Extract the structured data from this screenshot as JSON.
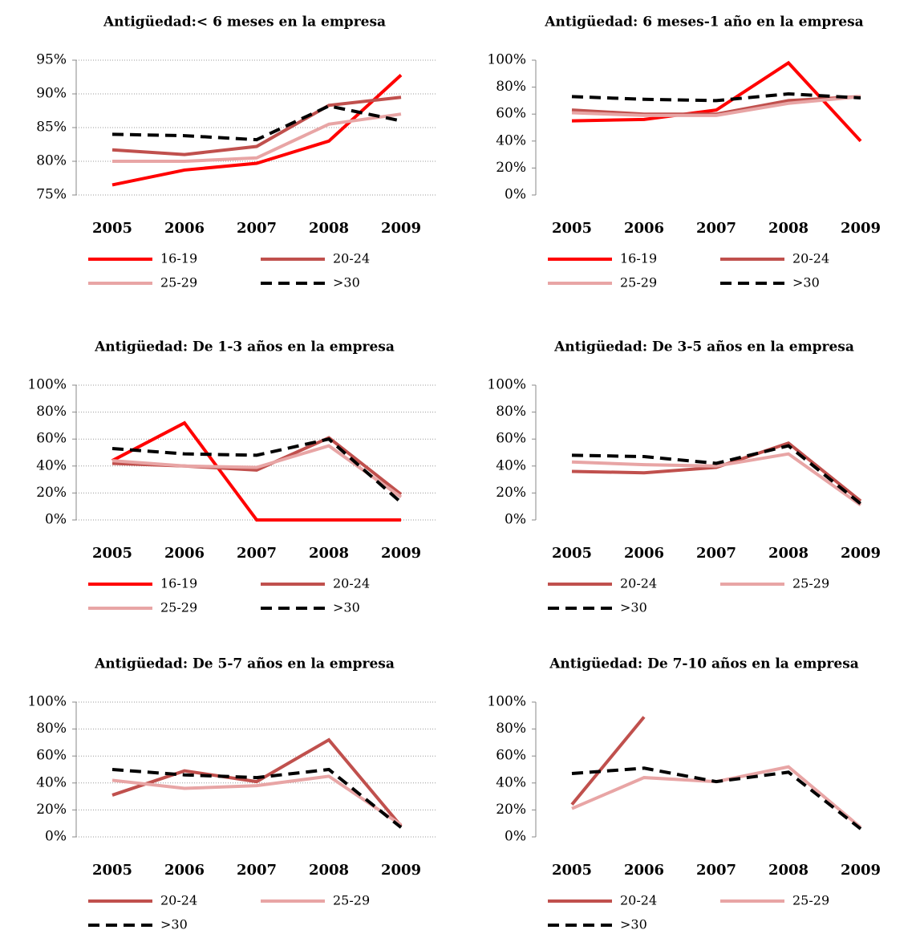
{
  "chart_data": [
    {
      "type": "line",
      "title": "Antigüedad:< 6 meses en la empresa",
      "categories": [
        "2005",
        "2006",
        "2007",
        "2008",
        "2009"
      ],
      "ylim": [
        75,
        95
      ],
      "yticks": [
        {
          "value": 75,
          "label": "75%"
        },
        {
          "value": 80,
          "label": "80%"
        },
        {
          "value": 85,
          "label": "85%"
        },
        {
          "value": 90,
          "label": "90%"
        },
        {
          "value": 95,
          "label": "95%"
        }
      ],
      "grid": true,
      "series": [
        {
          "name": "16-19",
          "color": "#ff0000",
          "values": [
            76.5,
            78.7,
            79.7,
            83,
            92.8
          ]
        },
        {
          "name": "20-24",
          "color": "#c0504d",
          "values": [
            81.7,
            81,
            82.2,
            88.3,
            89.5
          ]
        },
        {
          "name": "25-29",
          "color": "#e8a5a5",
          "values": [
            80,
            80,
            80.5,
            85.5,
            87
          ]
        },
        {
          "name": ">30",
          "color": "#000000",
          "dashed": true,
          "values": [
            84,
            83.8,
            83.2,
            88.2,
            86
          ]
        }
      ]
    },
    {
      "type": "line",
      "title": "Antigüedad:  6 meses-1 año en la empresa",
      "categories": [
        "2005",
        "2006",
        "2007",
        "2008",
        "2009"
      ],
      "ylim": [
        0,
        100
      ],
      "yticks": [
        {
          "value": 0,
          "label": "0%"
        },
        {
          "value": 20,
          "label": "20%"
        },
        {
          "value": 40,
          "label": "40%"
        },
        {
          "value": 60,
          "label": "60%"
        },
        {
          "value": 80,
          "label": "80%"
        },
        {
          "value": 100,
          "label": "100%"
        }
      ],
      "grid": false,
      "series": [
        {
          "name": "16-19",
          "color": "#ff0000",
          "values": [
            55,
            56,
            63,
            98,
            40
          ]
        },
        {
          "name": "20-24",
          "color": "#c0504d",
          "values": [
            63,
            60,
            60,
            70,
            73
          ]
        },
        {
          "name": "25-29",
          "color": "#e8a5a5",
          "values": [
            61,
            59,
            59,
            68,
            73
          ]
        },
        {
          "name": ">30",
          "color": "#000000",
          "dashed": true,
          "values": [
            73,
            71,
            70,
            75,
            72
          ]
        }
      ]
    },
    {
      "type": "line",
      "title": "Antigüedad: De 1-3 años en la empresa",
      "categories": [
        "2005",
        "2006",
        "2007",
        "2008",
        "2009"
      ],
      "ylim": [
        0,
        100
      ],
      "yticks": [
        {
          "value": 0,
          "label": "0%"
        },
        {
          "value": 20,
          "label": "20%"
        },
        {
          "value": 40,
          "label": "40%"
        },
        {
          "value": 60,
          "label": "60%"
        },
        {
          "value": 80,
          "label": "80%"
        },
        {
          "value": 100,
          "label": "100%"
        }
      ],
      "grid": true,
      "series": [
        {
          "name": "16-19",
          "color": "#ff0000",
          "values": [
            44,
            72,
            0,
            0,
            0
          ]
        },
        {
          "name": "20-24",
          "color": "#c0504d",
          "values": [
            42,
            40,
            37,
            61,
            19
          ]
        },
        {
          "name": "25-29",
          "color": "#e8a5a5",
          "values": [
            44,
            40,
            39,
            55,
            17
          ]
        },
        {
          "name": ">30",
          "color": "#000000",
          "dashed": true,
          "values": [
            53,
            49,
            48,
            60,
            13
          ]
        }
      ]
    },
    {
      "type": "line",
      "title": "Antigüedad: De 3-5 años en la empresa",
      "categories": [
        "2005",
        "2006",
        "2007",
        "2008",
        "2009"
      ],
      "ylim": [
        0,
        100
      ],
      "yticks": [
        {
          "value": 0,
          "label": "0%"
        },
        {
          "value": 20,
          "label": "20%"
        },
        {
          "value": 40,
          "label": "40%"
        },
        {
          "value": 60,
          "label": "60%"
        },
        {
          "value": 80,
          "label": "80%"
        },
        {
          "value": 100,
          "label": "100%"
        }
      ],
      "grid": false,
      "series": [
        {
          "name": "20-24",
          "color": "#c0504d",
          "values": [
            36,
            35,
            39,
            57,
            14
          ]
        },
        {
          "name": "25-29",
          "color": "#e8a5a5",
          "values": [
            43,
            41,
            40,
            49,
            11
          ]
        },
        {
          "name": ">30",
          "color": "#000000",
          "dashed": true,
          "values": [
            48,
            47,
            42,
            55,
            12
          ]
        }
      ]
    },
    {
      "type": "line",
      "title": "Antigüedad: De 5-7 años en la empresa",
      "categories": [
        "2005",
        "2006",
        "2007",
        "2008",
        "2009"
      ],
      "ylim": [
        0,
        100
      ],
      "yticks": [
        {
          "value": 0,
          "label": "0%"
        },
        {
          "value": 20,
          "label": "20%"
        },
        {
          "value": 40,
          "label": "40%"
        },
        {
          "value": 60,
          "label": "60%"
        },
        {
          "value": 80,
          "label": "80%"
        },
        {
          "value": 100,
          "label": "100%"
        }
      ],
      "grid": true,
      "series": [
        {
          "name": "20-24",
          "color": "#c0504d",
          "values": [
            31,
            49,
            41,
            72,
            8
          ]
        },
        {
          "name": "25-29",
          "color": "#e8a5a5",
          "values": [
            42,
            36,
            38,
            45,
            9
          ]
        },
        {
          "name": ">30",
          "color": "#000000",
          "dashed": true,
          "values": [
            50,
            46,
            44,
            50,
            7
          ]
        }
      ]
    },
    {
      "type": "line",
      "title": "Antigüedad: De 7-10 años en la empresa",
      "categories": [
        "2005",
        "2006",
        "2007",
        "2008",
        "2009"
      ],
      "ylim": [
        0,
        100
      ],
      "yticks": [
        {
          "value": 0,
          "label": "0%"
        },
        {
          "value": 20,
          "label": "20%"
        },
        {
          "value": 40,
          "label": "40%"
        },
        {
          "value": 60,
          "label": "60%"
        },
        {
          "value": 80,
          "label": "80%"
        },
        {
          "value": 100,
          "label": "100%"
        }
      ],
      "grid": false,
      "series": [
        {
          "name": "20-24",
          "color": "#c0504d",
          "values": [
            24,
            89,
            null,
            null,
            null
          ]
        },
        {
          "name": "25-29",
          "color": "#e8a5a5",
          "values": [
            21,
            44,
            41,
            52,
            7
          ]
        },
        {
          "name": ">30",
          "color": "#000000",
          "dashed": true,
          "values": [
            47,
            51,
            41,
            48,
            6
          ]
        }
      ]
    }
  ]
}
